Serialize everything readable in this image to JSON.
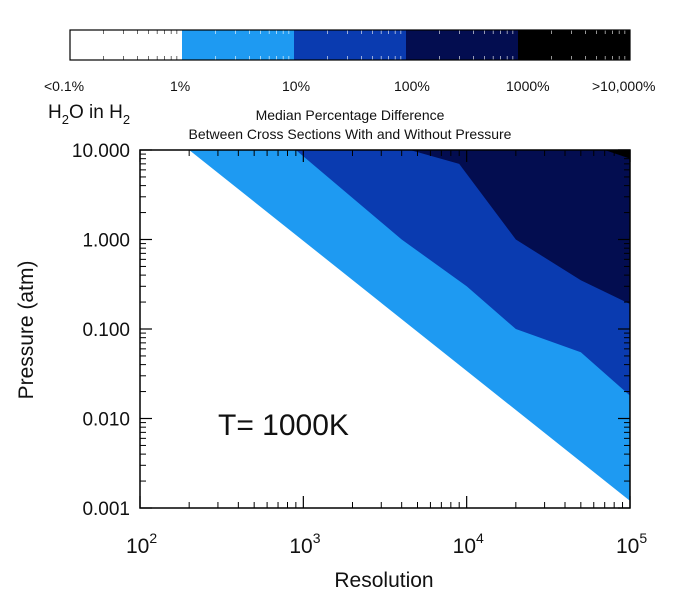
{
  "chart_data": {
    "type": "contour",
    "species": "H",
    "species_sub": "2",
    "species_mid": "O in H",
    "species_sub2": "2",
    "title_line1": "Median Percentage Difference",
    "title_line2": "Between Cross Sections With and Without Pressure",
    "annotation": "T= 1000K",
    "xlabel": "Resolution",
    "ylabel": "Pressure (atm)",
    "xscale": "log",
    "yscale": "log",
    "xlim": [
      100,
      100000
    ],
    "ylim": [
      0.001,
      10
    ],
    "x_ticks": [
      {
        "value": 100,
        "base": "10",
        "exp": "2"
      },
      {
        "value": 1000,
        "base": "10",
        "exp": "3"
      },
      {
        "value": 10000,
        "base": "10",
        "exp": "4"
      },
      {
        "value": 100000,
        "base": "10",
        "exp": "5"
      }
    ],
    "y_ticks": [
      {
        "value": 10,
        "label": "10.000"
      },
      {
        "value": 1,
        "label": "1.000"
      },
      {
        "value": 0.1,
        "label": "0.100"
      },
      {
        "value": 0.01,
        "label": "0.010"
      },
      {
        "value": 0.001,
        "label": "0.001"
      }
    ],
    "colorbar": {
      "bins": [
        {
          "color": "#ffffff"
        },
        {
          "color": "#1e9af2"
        },
        {
          "color": "#0a3bb0"
        },
        {
          "color": "#030d50"
        },
        {
          "color": "#000000"
        }
      ],
      "tick_labels": [
        "<0.1%",
        "1%",
        "10%",
        "100%",
        "1000%",
        ">10,000%"
      ]
    },
    "level_boundaries": [
      {
        "name": ">=1%",
        "color": "#1e9af2",
        "points": [
          [
            100,
            10
          ],
          [
            200,
            10
          ],
          [
            100000,
            0.0012
          ]
        ]
      },
      {
        "name": ">=10%",
        "color": "#0a3bb0",
        "points": [
          [
            900,
            10
          ],
          [
            4000,
            1.0
          ],
          [
            10000,
            0.3
          ],
          [
            20000,
            0.1
          ],
          [
            50000,
            0.055
          ],
          [
            100000,
            0.018
          ]
        ]
      },
      {
        "name": ">=100%",
        "color": "#030d50",
        "points": [
          [
            4500,
            10
          ],
          [
            9000,
            7
          ],
          [
            20000,
            1.0
          ],
          [
            50000,
            0.35
          ],
          [
            100000,
            0.19
          ]
        ]
      },
      {
        "name": ">=1000%",
        "color": "#000000",
        "points": [
          [
            70000,
            10
          ],
          [
            100000,
            8
          ]
        ]
      }
    ]
  }
}
